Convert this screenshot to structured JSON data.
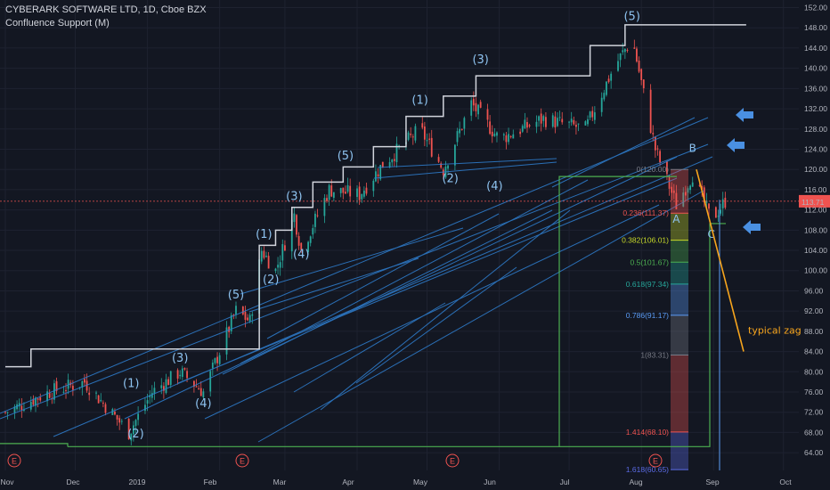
{
  "header": {
    "title": "CYBERARK SOFTWARE LTD, 1D, Cboe BZX",
    "indicator": "Confluence Support (M)"
  },
  "colors": {
    "background": "#131722",
    "grid": "#1e2230",
    "up_candle": "#26a69a",
    "down_candle": "#ef5350",
    "step_line": "#d1d4dc",
    "trend_lines": "#2f7fd0",
    "fib_0": "#787b86",
    "fib_0236": "#ef5350",
    "fib_0382": "#c6d829",
    "fib_05": "#4caf50",
    "fib_0618": "#26a69a",
    "fib_0786": "#5b9cf6",
    "fib_1": "#787b86",
    "fib_1414": "#ef5350",
    "fib_1618": "#5b6be6",
    "price_line": "#ef5350",
    "annotation": "#f7a51d",
    "arrows": "#4a90e2",
    "earnings": "#ef5350"
  },
  "chart_data": {
    "type": "candlestick",
    "symbol": "CYBERARK SOFTWARE LTD",
    "interval": "1D",
    "exchange": "Cboe BZX",
    "y_ticks": [
      64.0,
      68.0,
      72.0,
      76.0,
      80.0,
      84.0,
      88.0,
      92.0,
      96.0,
      100.0,
      104.0,
      108.0,
      112.0,
      116.0,
      120.0,
      124.0,
      128.0,
      132.0,
      136.0,
      140.0,
      144.0,
      148.0,
      152.0
    ],
    "y_tick_labels": [
      "64.00",
      "68.00",
      "72.00",
      "76.00",
      "80.00",
      "84.00",
      "88.00",
      "92.00",
      "96.00",
      "100.00",
      "104.00",
      "108.00",
      "112.00",
      "116.00",
      "120.00",
      "124.00",
      "128.00",
      "132.00",
      "136.00",
      "140.00",
      "144.00",
      "148.00",
      "152.00"
    ],
    "ylim": [
      60.5,
      153.5
    ],
    "x_ticks": [
      "Nov",
      "Dec",
      "2019",
      "Feb",
      "Mar",
      "Apr",
      "May",
      "Jun",
      "Jul",
      "Aug",
      "Sep",
      "Oct"
    ],
    "last_price": 113.71,
    "last_price_label": "113.71",
    "earnings_marker": "E",
    "earnings_dates": [
      "2018-11-08",
      "2019-02-14",
      "2019-05-09",
      "2019-08-08"
    ],
    "step_levels": [
      {
        "from": "2018-11-01",
        "to": "2018-11-12",
        "y": 81.0
      },
      {
        "from": "2018-11-12",
        "to": "2019-02-18",
        "y": 84.5
      },
      {
        "from": "2019-02-18",
        "to": "2019-02-25",
        "y": 105.0
      },
      {
        "from": "2019-02-25",
        "to": "2019-03-04",
        "y": 108.0
      },
      {
        "from": "2019-03-04",
        "to": "2019-03-13",
        "y": 112.5
      },
      {
        "from": "2019-03-13",
        "to": "2019-03-26",
        "y": 117.5
      },
      {
        "from": "2019-03-26",
        "to": "2019-04-08",
        "y": 120.5
      },
      {
        "from": "2019-04-08",
        "to": "2019-04-22",
        "y": 124.5
      },
      {
        "from": "2019-04-22",
        "to": "2019-05-08",
        "y": 130.5
      },
      {
        "from": "2019-05-08",
        "to": "2019-05-22",
        "y": 134.5
      },
      {
        "from": "2019-05-22",
        "to": "2019-07-10",
        "y": 138.5
      },
      {
        "from": "2019-07-10",
        "to": "2019-07-25",
        "y": 144.5
      },
      {
        "from": "2019-07-25",
        "to": "2019-09-15",
        "y": 148.6
      }
    ],
    "waves": [
      {
        "label": "(1)",
        "date": "2018-12-25",
        "y": 77.0
      },
      {
        "label": "(2)",
        "date": "2018-12-27",
        "y": 67.0
      },
      {
        "label": "(3)",
        "date": "2019-01-15",
        "y": 82.0
      },
      {
        "label": "(4)",
        "date": "2019-01-25",
        "y": 73.0
      },
      {
        "label": "(5)",
        "date": "2019-02-08",
        "y": 94.5
      },
      {
        "label": "(1)",
        "date": "2019-02-20",
        "y": 106.5
      },
      {
        "label": "(2)",
        "date": "2019-02-23",
        "y": 97.5
      },
      {
        "label": "(3)",
        "date": "2019-03-05",
        "y": 114.0
      },
      {
        "label": "(4)",
        "date": "2019-03-08",
        "y": 102.5
      },
      {
        "label": "(5)",
        "date": "2019-03-27",
        "y": 122.0
      },
      {
        "label": "(1)",
        "date": "2019-04-28",
        "y": 133.0
      },
      {
        "label": "(2)",
        "date": "2019-05-11",
        "y": 117.5
      },
      {
        "label": "(3)",
        "date": "2019-05-24",
        "y": 141.0
      },
      {
        "label": "(4)",
        "date": "2019-05-30",
        "y": 116.0
      },
      {
        "label": "(5)",
        "date": "2019-07-28",
        "y": 149.5
      }
    ],
    "abc": [
      {
        "label": "A",
        "date": "2019-08-16",
        "y": 109.5
      },
      {
        "label": "B",
        "date": "2019-08-23",
        "y": 123.5
      },
      {
        "label": "C",
        "date": "2019-08-31",
        "y": 106.5
      }
    ],
    "fib_levels": [
      {
        "label": "0(120.00)",
        "value": 120.0
      },
      {
        "label": "0.236(111.37)",
        "value": 111.37
      },
      {
        "label": "0.382(106.01)",
        "value": 106.01
      },
      {
        "label": "0.5(101.67)",
        "value": 101.67
      },
      {
        "label": "0.618(97.34)",
        "value": 97.34
      },
      {
        "label": "0.786(91.17)",
        "value": 91.17
      },
      {
        "label": "1(83.31)",
        "value": 83.31
      },
      {
        "label": "1.414(68.10)",
        "value": 68.1
      },
      {
        "label": "1.618(60.65)",
        "value": 60.65
      }
    ],
    "annotation": "typical zag"
  }
}
